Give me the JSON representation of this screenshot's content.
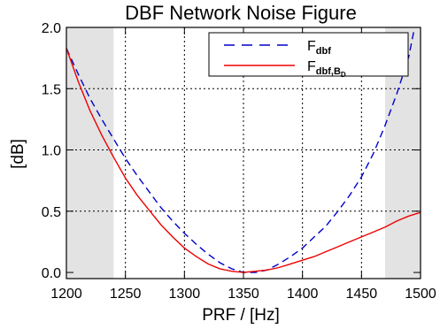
{
  "chart_data": {
    "type": "line",
    "title": "DBF Network Noise Figure",
    "xlabel": "PRF / [Hz]",
    "ylabel": "[dB]",
    "xlim": [
      1200,
      1500
    ],
    "ylim": [
      -0.05,
      2.0
    ],
    "x_ticks": [
      1200,
      1250,
      1300,
      1350,
      1400,
      1450,
      1500
    ],
    "x_tick_labels": [
      "1200",
      "1250",
      "1300",
      "1350",
      "1400",
      "1450",
      "1500"
    ],
    "y_ticks": [
      0.0,
      0.5,
      1.0,
      1.5,
      2.0
    ],
    "y_tick_labels": [
      "0.0",
      "0.5",
      "1.0",
      "1.5",
      "2.0"
    ],
    "grid": true,
    "grid_x": [
      1250,
      1300,
      1350,
      1400,
      1450
    ],
    "grid_y": [
      0.5,
      1.0,
      1.5
    ],
    "shaded_regions": [
      {
        "x": [
          1200,
          1240
        ],
        "color": "#e3e3e3"
      },
      {
        "x": [
          1470,
          1500
        ],
        "color": "#e3e3e3"
      }
    ],
    "legend": {
      "position": "top-right",
      "entries": [
        {
          "label_main": "F",
          "label_sub": "dbf",
          "label_subsub": "",
          "color": "#0000cc",
          "dash": "dashed"
        },
        {
          "label_main": "F",
          "label_sub": "dbf,B",
          "label_subsub": "D",
          "color": "#ee0000",
          "dash": "solid"
        }
      ]
    },
    "series": [
      {
        "color": "#0000cc",
        "style": "dashed",
        "x": [
          1200,
          1210,
          1220,
          1230,
          1240,
          1250,
          1260,
          1270,
          1280,
          1290,
          1300,
          1310,
          1320,
          1330,
          1340,
          1350,
          1360,
          1370,
          1380,
          1390,
          1400,
          1410,
          1420,
          1430,
          1440,
          1450,
          1460,
          1470,
          1480,
          1490,
          1495
        ],
        "y": [
          1.83,
          1.62,
          1.42,
          1.25,
          1.09,
          0.93,
          0.79,
          0.66,
          0.53,
          0.42,
          0.32,
          0.23,
          0.15,
          0.08,
          0.03,
          0.0,
          0.0,
          0.02,
          0.07,
          0.13,
          0.2,
          0.29,
          0.38,
          0.5,
          0.63,
          0.78,
          0.97,
          1.2,
          1.46,
          1.76,
          2.0
        ]
      },
      {
        "color": "#ee0000",
        "style": "solid",
        "x": [
          1200,
          1210,
          1220,
          1230,
          1240,
          1250,
          1260,
          1270,
          1280,
          1290,
          1300,
          1310,
          1320,
          1330,
          1340,
          1350,
          1360,
          1370,
          1380,
          1390,
          1400,
          1410,
          1420,
          1430,
          1440,
          1450,
          1460,
          1470,
          1480,
          1490,
          1500
        ],
        "y": [
          1.83,
          1.56,
          1.32,
          1.12,
          0.94,
          0.77,
          0.63,
          0.51,
          0.39,
          0.29,
          0.2,
          0.13,
          0.07,
          0.03,
          0.01,
          0.0,
          0.01,
          0.02,
          0.04,
          0.07,
          0.1,
          0.13,
          0.17,
          0.21,
          0.25,
          0.29,
          0.33,
          0.37,
          0.42,
          0.46,
          0.49
        ]
      }
    ]
  }
}
